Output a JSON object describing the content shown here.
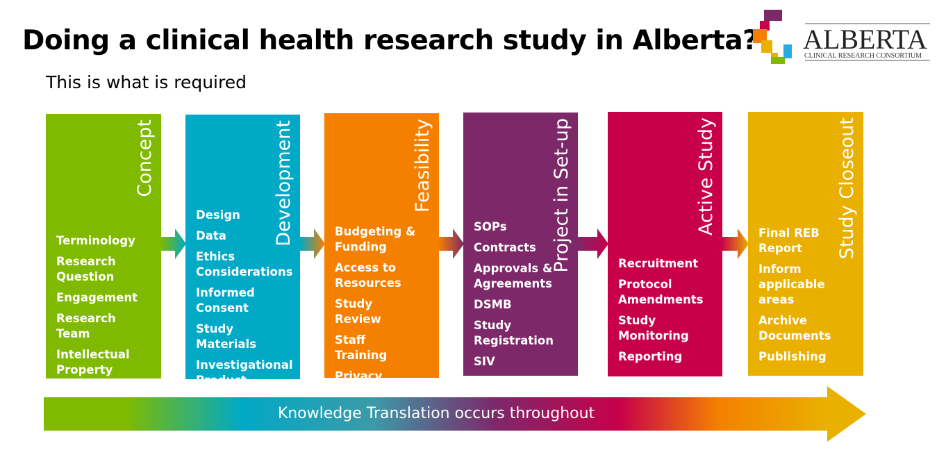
{
  "header": {
    "title": "Doing a clinical health research study in Alberta?",
    "subtitle": "This is what is required"
  },
  "logo": {
    "name": "ALBERTA",
    "tagline": "CLINICAL RESEARCH CONSORTIUM"
  },
  "stages": [
    {
      "title": "Concept",
      "color": "#7fba00",
      "items": [
        "Terminology",
        "Research Question",
        "Engagement",
        "Research Team",
        "Intellectual Property"
      ]
    },
    {
      "title": "Development",
      "color": "#00a9c6",
      "items": [
        "Design",
        "Data",
        "Ethics Considerations",
        "Informed Consent",
        "Study Materials",
        "Investigational Product"
      ]
    },
    {
      "title": "Feasibility",
      "color": "#f58000",
      "items": [
        "Budgeting & Funding",
        "Access to Resources",
        "Study Review",
        "Staff Training",
        "Privacy Considerations"
      ]
    },
    {
      "title": "Project in Set-up",
      "color": "#7d2869",
      "items": [
        "SOPs",
        "Contracts",
        "Approvals & Agreements",
        "DSMB",
        "Study Registration",
        "SIV"
      ]
    },
    {
      "title": "Active Study",
      "color": "#c8004a",
      "items": [
        "Recruitment",
        "Protocol Amendments",
        "Study Monitoring",
        "Reporting"
      ]
    },
    {
      "title": "Study Closeout",
      "color": "#e9b000",
      "items": [
        "Final REB Report",
        "Inform applicable areas",
        "Archive Documents",
        "Publishing"
      ]
    }
  ],
  "footer": {
    "label": "Knowledge Translation occurs throughout"
  }
}
